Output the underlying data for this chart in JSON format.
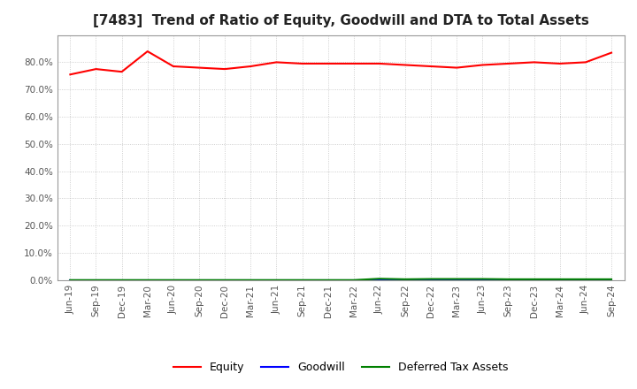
{
  "title": "[7483]  Trend of Ratio of Equity, Goodwill and DTA to Total Assets",
  "x_labels": [
    "Jun-19",
    "Sep-19",
    "Dec-19",
    "Mar-20",
    "Jun-20",
    "Sep-20",
    "Dec-20",
    "Mar-21",
    "Jun-21",
    "Sep-21",
    "Dec-21",
    "Mar-22",
    "Jun-22",
    "Sep-22",
    "Dec-22",
    "Mar-23",
    "Jun-23",
    "Sep-23",
    "Dec-23",
    "Mar-24",
    "Jun-24",
    "Sep-24"
  ],
  "equity": [
    75.5,
    77.5,
    76.5,
    84.0,
    78.5,
    78.0,
    77.5,
    78.5,
    80.0,
    79.5,
    79.5,
    79.5,
    79.5,
    79.0,
    78.5,
    78.0,
    79.0,
    79.5,
    80.0,
    79.5,
    80.0,
    83.5
  ],
  "goodwill": [
    0.0,
    0.0,
    0.0,
    0.0,
    0.0,
    0.0,
    0.0,
    0.0,
    0.0,
    0.0,
    0.0,
    0.0,
    0.0,
    0.0,
    0.0,
    0.0,
    0.0,
    0.0,
    0.0,
    0.0,
    0.0,
    0.0
  ],
  "dta": [
    0.0,
    0.0,
    0.0,
    0.0,
    0.0,
    0.0,
    0.0,
    0.0,
    0.0,
    0.0,
    0.0,
    0.0,
    0.5,
    0.3,
    0.4,
    0.4,
    0.4,
    0.3,
    0.3,
    0.3,
    0.3,
    0.3
  ],
  "equity_color": "#ff0000",
  "goodwill_color": "#0000ff",
  "dta_color": "#008000",
  "ylim": [
    0,
    90
  ],
  "yticks": [
    0,
    10,
    20,
    30,
    40,
    50,
    60,
    70,
    80
  ],
  "background_color": "#ffffff",
  "plot_bg_color": "#ffffff",
  "grid_color": "#aaaaaa",
  "legend_labels": [
    "Equity",
    "Goodwill",
    "Deferred Tax Assets"
  ],
  "title_fontsize": 11,
  "tick_fontsize": 7.5,
  "legend_fontsize": 9
}
